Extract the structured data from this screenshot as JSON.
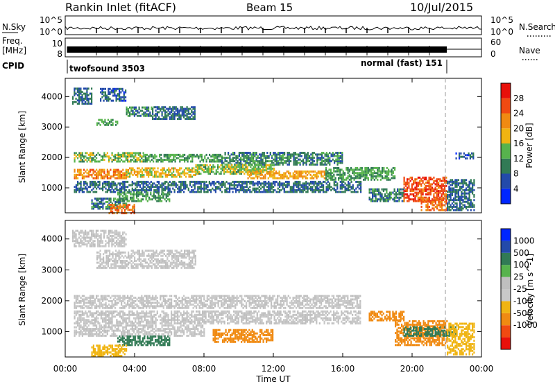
{
  "header": {
    "station": "Rankin Inlet (fitACF)",
    "beam": "Beam 15",
    "date": "10/Jul/2015"
  },
  "panels": {
    "nsky": {
      "label": "N.Sky",
      "ticks": [
        "10^5",
        "10^0"
      ],
      "right_label": "N.Search",
      "right_ticks": [
        "10^5",
        "10^0"
      ]
    },
    "freq": {
      "label": "Freq.",
      "unit": "[MHz]",
      "ticks": [
        "10",
        "8"
      ],
      "right_label": "Nave",
      "right_ticks": [
        "60",
        "0"
      ]
    },
    "cpid": {
      "label": "CPID",
      "segments": [
        {
          "name": "twofsound 3503",
          "start_hour": 0.0,
          "end_hour": 22.0
        },
        {
          "name": "normal (fast) 151",
          "start_hour": 22.0,
          "end_hour": 24.0
        }
      ]
    }
  },
  "colors": {
    "power_scale": [
      "#0026ff",
      "#234aaa",
      "#317a55",
      "#57b34d",
      "#f0b412",
      "#f08a12",
      "#f04a12",
      "#e8100a"
    ],
    "velocity_scale": [
      "#e8100a",
      "#f04a12",
      "#f08a12",
      "#f0b412",
      "#c8c8c8",
      "#bfbfbf",
      "#57b34d",
      "#317a55",
      "#234aaa",
      "#0026ff"
    ]
  },
  "chart_data": [
    {
      "type": "heatmap",
      "title": "",
      "quantity": "Power",
      "xlabel": "Time UT",
      "ylabel": "Slant Range [km]",
      "colorbar_label": "Power [dB]",
      "colorbar_ticks": [
        "28",
        "24",
        "20",
        "16",
        "12",
        "8",
        "4"
      ],
      "colorbar_values": [
        28,
        24,
        20,
        16,
        12,
        8,
        4
      ],
      "x_ticks": [
        "00:00",
        "04:00",
        "08:00",
        "12:00",
        "16:00",
        "20:00",
        "00:00"
      ],
      "xlim": [
        0,
        24
      ],
      "y_ticks": [
        "4000",
        "3000",
        "2000",
        "1000"
      ],
      "y_tick_values": [
        4000,
        3000,
        2000,
        1000
      ],
      "ylim": [
        180,
        4600
      ],
      "regions": [
        {
          "t0": 0.4,
          "t1": 1.5,
          "r0": 3800,
          "r1": 4300,
          "value": 10
        },
        {
          "t0": 2.0,
          "t1": 3.5,
          "r0": 3900,
          "r1": 4300,
          "value": 9
        },
        {
          "t0": 1.8,
          "t1": 3.0,
          "r0": 3100,
          "r1": 3300,
          "value": 14
        },
        {
          "t0": 3.5,
          "t1": 5.0,
          "r0": 3400,
          "r1": 3700,
          "value": 12
        },
        {
          "t0": 5.0,
          "t1": 7.5,
          "r0": 3300,
          "r1": 3700,
          "value": 10
        },
        {
          "t0": 0.5,
          "t1": 4.5,
          "r0": 1900,
          "r1": 2200,
          "value": 16
        },
        {
          "t0": 4.5,
          "t1": 9.0,
          "r0": 1900,
          "r1": 2150,
          "value": 14
        },
        {
          "t0": 9.0,
          "t1": 16.0,
          "r0": 1800,
          "r1": 2200,
          "value": 12
        },
        {
          "t0": 0.5,
          "t1": 3.5,
          "r0": 1350,
          "r1": 1650,
          "value": 24
        },
        {
          "t0": 3.5,
          "t1": 7.5,
          "r0": 1400,
          "r1": 1700,
          "value": 20
        },
        {
          "t0": 7.5,
          "t1": 12.0,
          "r0": 1500,
          "r1": 1800,
          "value": 17
        },
        {
          "t0": 10.5,
          "t1": 15.0,
          "r0": 1350,
          "r1": 1600,
          "value": 22
        },
        {
          "t0": 15.0,
          "t1": 19.0,
          "r0": 1300,
          "r1": 1700,
          "value": 14
        },
        {
          "t0": 0.5,
          "t1": 8.0,
          "r0": 900,
          "r1": 1250,
          "value": 10
        },
        {
          "t0": 3.0,
          "t1": 6.0,
          "r0": 600,
          "r1": 900,
          "value": 14
        },
        {
          "t0": 8.0,
          "t1": 17.0,
          "r0": 900,
          "r1": 1250,
          "value": 10
        },
        {
          "t0": 1.5,
          "t1": 3.5,
          "r0": 350,
          "r1": 700,
          "value": 12
        },
        {
          "t0": 2.5,
          "t1": 4.0,
          "r0": 200,
          "r1": 500,
          "value": 26
        },
        {
          "t0": 17.5,
          "t1": 19.5,
          "r0": 600,
          "r1": 1000,
          "value": 12
        },
        {
          "t0": 19.5,
          "t1": 22.0,
          "r0": 600,
          "r1": 1400,
          "value": 28
        },
        {
          "t0": 20.5,
          "t1": 22.0,
          "r0": 300,
          "r1": 700,
          "value": 26
        },
        {
          "t0": 22.0,
          "t1": 23.6,
          "r0": 300,
          "r1": 1300,
          "value": 10
        },
        {
          "t0": 22.5,
          "t1": 23.5,
          "r0": 2000,
          "r1": 2200,
          "value": 8
        }
      ]
    },
    {
      "type": "heatmap",
      "title": "",
      "quantity": "Velocity",
      "xlabel": "Time UT",
      "ylabel": "Slant Range [km]",
      "colorbar_label": "Velocity [m s^-1]",
      "colorbar_ticks": [
        "1000",
        "500",
        "100",
        "25",
        "-25",
        "-100",
        "-500",
        "-1000"
      ],
      "colorbar_values": [
        1000,
        500,
        100,
        25,
        -25,
        -100,
        -500,
        -1000
      ],
      "x_ticks": [
        "00:00",
        "04:00",
        "08:00",
        "12:00",
        "16:00",
        "20:00",
        "00:00"
      ],
      "xlim": [
        0,
        24
      ],
      "y_ticks": [
        "4000",
        "3000",
        "2000",
        "1000"
      ],
      "y_tick_values": [
        4000,
        3000,
        2000,
        1000
      ],
      "ylim": [
        180,
        4600
      ],
      "regions": [
        {
          "t0": 0.4,
          "t1": 3.5,
          "r0": 3800,
          "r1": 4300,
          "value": 0
        },
        {
          "t0": 1.8,
          "t1": 7.5,
          "r0": 3100,
          "r1": 3700,
          "value": 0
        },
        {
          "t0": 0.5,
          "t1": 17.0,
          "r0": 1800,
          "r1": 2200,
          "value": 0
        },
        {
          "t0": 0.5,
          "t1": 17.0,
          "r0": 1300,
          "r1": 1700,
          "value": 0
        },
        {
          "t0": 0.5,
          "t1": 8.0,
          "r0": 900,
          "r1": 1250,
          "value": 0
        },
        {
          "t0": 3.0,
          "t1": 6.0,
          "r0": 600,
          "r1": 900,
          "value": 150
        },
        {
          "t0": 8.5,
          "t1": 12.0,
          "r0": 700,
          "r1": 1100,
          "value": -150
        },
        {
          "t0": 1.5,
          "t1": 3.5,
          "r0": 250,
          "r1": 600,
          "value": -60
        },
        {
          "t0": 17.5,
          "t1": 19.5,
          "r0": 1400,
          "r1": 1700,
          "value": -350
        },
        {
          "t0": 19.0,
          "t1": 22.0,
          "r0": 600,
          "r1": 1400,
          "value": -300
        },
        {
          "t0": 19.5,
          "t1": 22.5,
          "r0": 900,
          "r1": 1200,
          "value": 150
        },
        {
          "t0": 22.0,
          "t1": 23.6,
          "r0": 300,
          "r1": 1300,
          "value": -80
        }
      ]
    }
  ]
}
